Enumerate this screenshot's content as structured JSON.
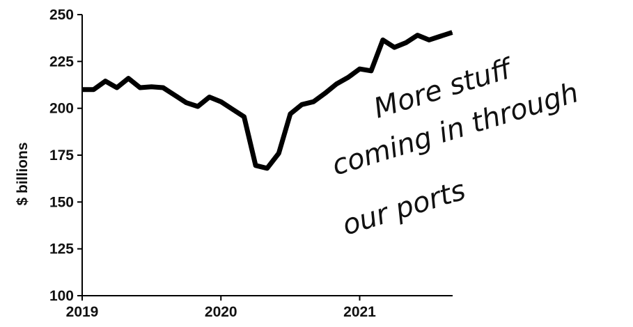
{
  "chart_data": {
    "type": "line",
    "xlabel": "",
    "ylabel": "$ billions",
    "ylim": [
      100,
      250
    ],
    "xlim": [
      2019,
      2021.67
    ],
    "yticks": [
      100,
      125,
      150,
      175,
      200,
      225,
      250
    ],
    "xticks": [
      2019,
      2020,
      2021
    ],
    "xtick_labels": [
      "2019",
      "2020",
      "2021"
    ],
    "grid": false,
    "series": [
      {
        "color": "#000000",
        "x": [
          2019.0,
          2019.083,
          2019.167,
          2019.25,
          2019.333,
          2019.417,
          2019.5,
          2019.583,
          2019.667,
          2019.75,
          2019.833,
          2019.917,
          2020.0,
          2020.083,
          2020.167,
          2020.25,
          2020.333,
          2020.417,
          2020.5,
          2020.583,
          2020.667,
          2020.75,
          2020.833,
          2020.917,
          2021.0,
          2021.083,
          2021.167,
          2021.25,
          2021.333,
          2021.417,
          2021.5,
          2021.583,
          2021.667
        ],
        "values": [
          210,
          210,
          214.5,
          211,
          216,
          211,
          211.5,
          211,
          207,
          203,
          201,
          206,
          203.5,
          199.5,
          195.5,
          169.5,
          168,
          176,
          197,
          202,
          203.5,
          208,
          213,
          216.5,
          221,
          220,
          236.5,
          232.5,
          235,
          239,
          236.5,
          238.5,
          240.5
        ]
      }
    ],
    "annotation": {
      "text_lines": [
        "More stuff",
        "coming in through",
        "our ports"
      ]
    }
  }
}
